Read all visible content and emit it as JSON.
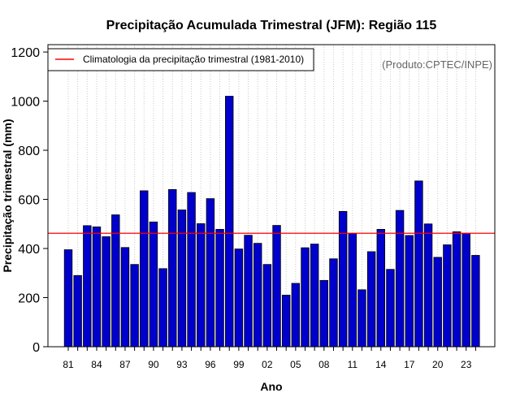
{
  "chart_data": {
    "type": "bar",
    "title": "Precipitação Acumulada Trimestral (JFM): Região 115",
    "xlabel": "Ano",
    "ylabel": "Precipitação trimestral (mm)",
    "credit": "(Produto:CPTEC/INPE)",
    "ylim": [
      0,
      1230
    ],
    "y_ticks": [
      0,
      200,
      400,
      600,
      800,
      1000,
      1200
    ],
    "x_tick_labels": [
      "81",
      "84",
      "87",
      "90",
      "93",
      "96",
      "99",
      "02",
      "05",
      "08",
      "11",
      "14",
      "17",
      "20",
      "23"
    ],
    "categories": [
      "1981",
      "1982",
      "1983",
      "1984",
      "1985",
      "1986",
      "1987",
      "1988",
      "1989",
      "1990",
      "1991",
      "1992",
      "1993",
      "1994",
      "1995",
      "1996",
      "1997",
      "1998",
      "1999",
      "2000",
      "2001",
      "2002",
      "2003",
      "2004",
      "2005",
      "2006",
      "2007",
      "2008",
      "2009",
      "2010",
      "2011",
      "2012",
      "2013",
      "2014",
      "2015",
      "2016",
      "2017",
      "2018",
      "2019",
      "2020",
      "2021",
      "2022",
      "2023",
      "2024"
    ],
    "values": [
      395,
      290,
      493,
      488,
      448,
      537,
      404,
      335,
      635,
      508,
      318,
      640,
      557,
      628,
      501,
      603,
      478,
      1020,
      398,
      454,
      421,
      335,
      494,
      210,
      258,
      403,
      418,
      270,
      358,
      551,
      461,
      232,
      387,
      478,
      315,
      555,
      453,
      675,
      500,
      364,
      415,
      468,
      462,
      372
    ],
    "bar_color": "#0000cc",
    "climatology": {
      "label": "Climatologia da precipitação trimestral (1981-2010)",
      "value": 462,
      "color": "#ff0000"
    },
    "legend_position": "top-left",
    "grid": "vertical dotted"
  }
}
